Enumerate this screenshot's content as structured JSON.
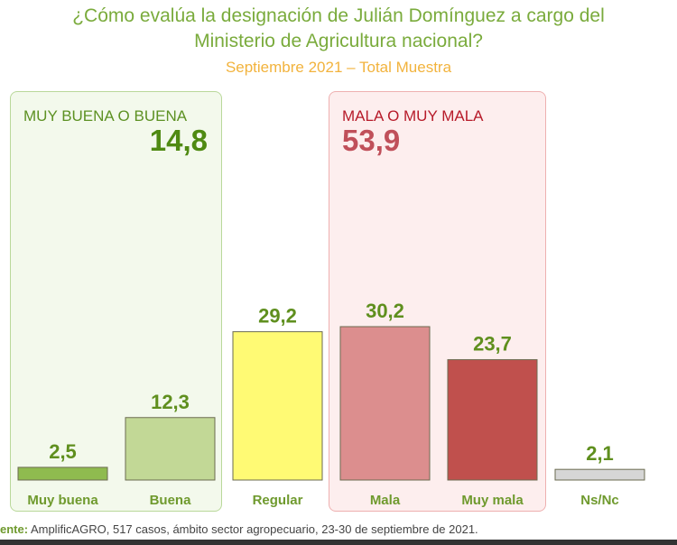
{
  "header": {
    "title_line1": "¿Cómo evalúa la designación de Julián Domínguez a cargo del",
    "title_line2": "Ministerio de Agricultura nacional?",
    "subtitle": "Septiembre 2021 – Total Muestra"
  },
  "groups": {
    "positive": {
      "label": "MUY BUENA O BUENA",
      "value": "14,8"
    },
    "negative": {
      "label": "MALA O MUY MALA",
      "value": "53,9"
    }
  },
  "footer": {
    "prefix": "ente:",
    "text": " AmplificAGRO, 517 casos, ámbito sector agropecuario, 23-30 de septiembre de 2021."
  },
  "chart_data": {
    "type": "bar",
    "title": "¿Cómo evalúa la designación de Julián Domínguez a cargo del Ministerio de Agricultura nacional?",
    "categories": [
      "Muy buena",
      "Buena",
      "Regular",
      "Mala",
      "Muy mala",
      "Ns/Nc"
    ],
    "values": [
      2.5,
      12.3,
      29.2,
      30.2,
      23.7,
      2.1
    ],
    "value_labels": [
      "2,5",
      "12,3",
      "29,2",
      "30,2",
      "23,7",
      "2,1"
    ],
    "colors": [
      "#8fbb4f",
      "#c2d896",
      "#fffa74",
      "#dc8e8e",
      "#c0504d",
      "#d6d6d6"
    ],
    "ylim": [
      0,
      30.2
    ],
    "grid": false
  }
}
